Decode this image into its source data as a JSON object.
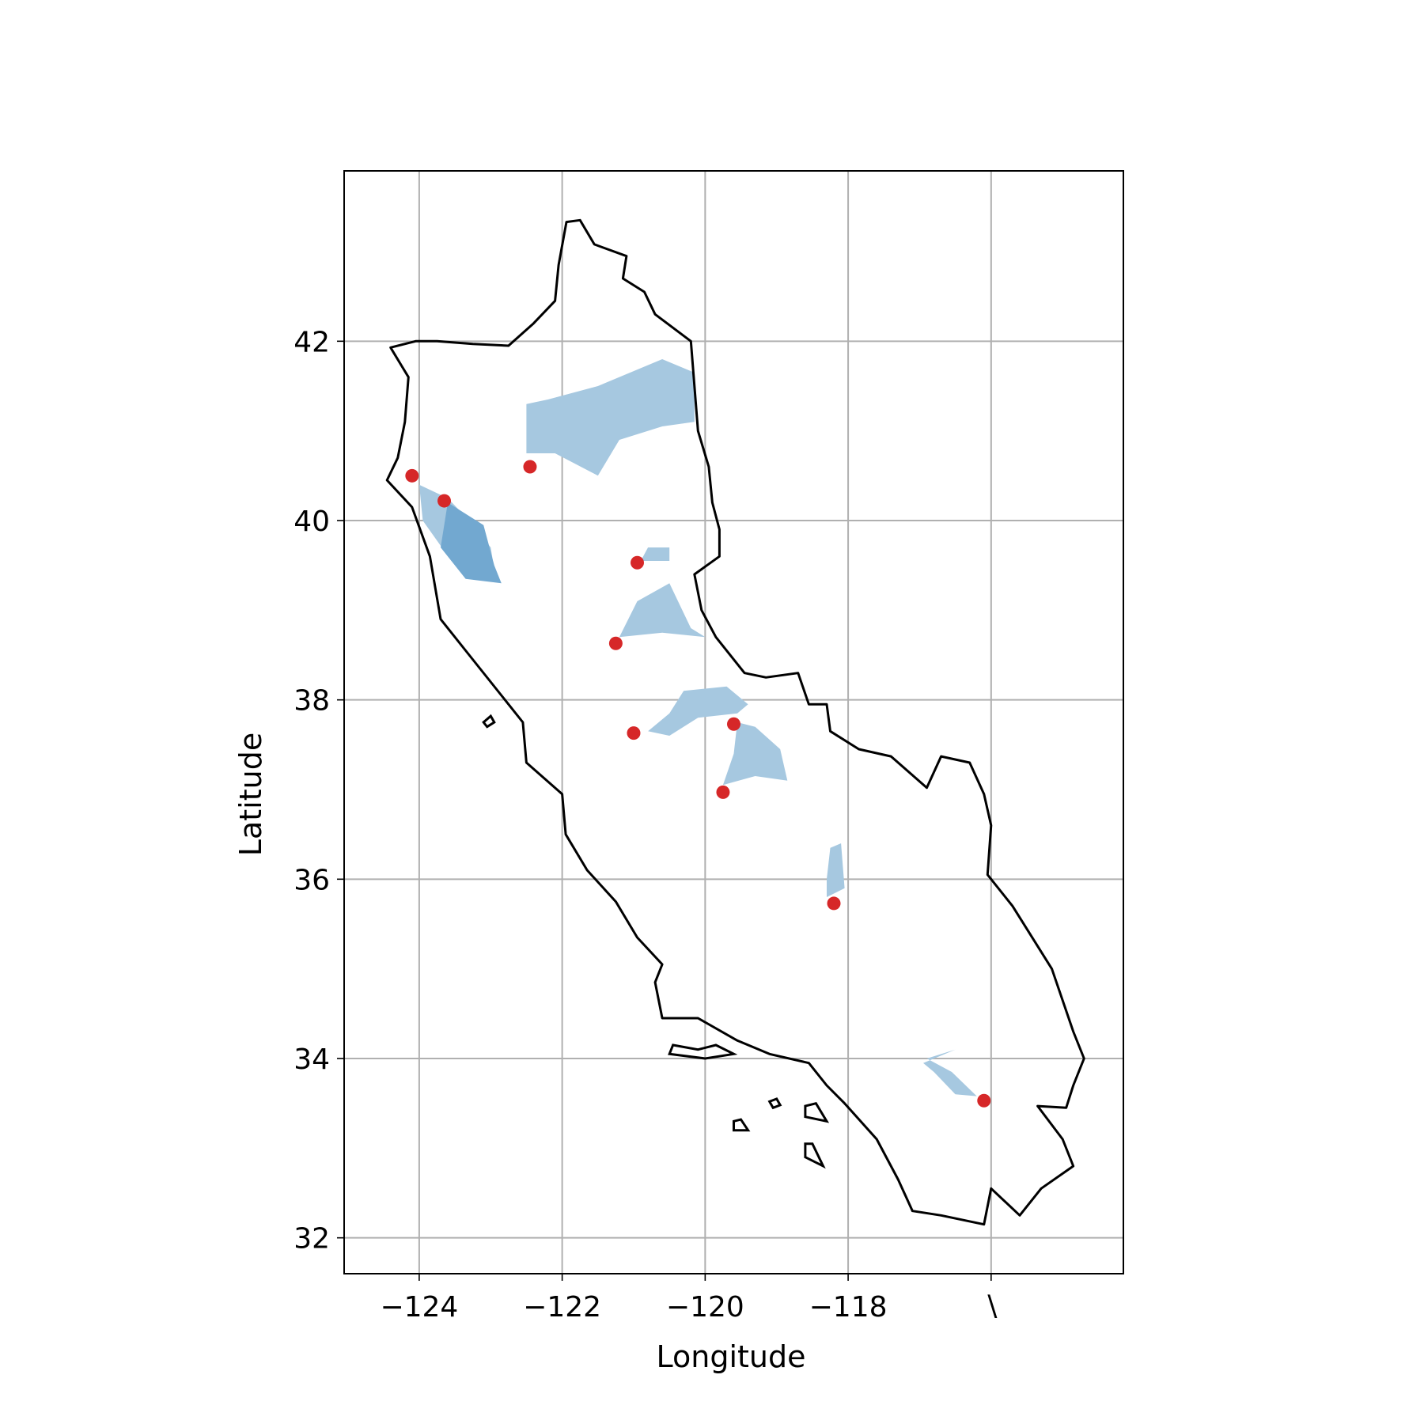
{
  "chart_data": {
    "type": "scatter",
    "title": "",
    "xlabel": "Longitude",
    "ylabel": "Latitude",
    "xlim": [
      -125.05,
      -114.15
    ],
    "ylim": [
      31.6,
      43.9
    ],
    "grid": true,
    "xticks": [
      -124,
      -122,
      -120,
      -118,
      -116
    ],
    "yticks": [
      32,
      34,
      36,
      38,
      40,
      42
    ],
    "xtick_labels": [
      "−124",
      "−122",
      "−120",
      "−118",
      "∖"
    ],
    "ytick_labels": [
      "32",
      "34",
      "36",
      "38",
      "40",
      "42"
    ],
    "colors": {
      "points": "#d62728",
      "watershed": "#a6c8e0",
      "watershed_overlap": "#72a8d0",
      "boundary": "#000000"
    },
    "series": [
      {
        "marker": "circle",
        "x": [
          -124.1,
          -123.65,
          -122.45,
          -120.95,
          -121.25,
          -121.0,
          -119.6,
          -119.75,
          -118.2,
          -116.1
        ],
        "y": [
          40.5,
          40.22,
          40.6,
          39.53,
          38.63,
          37.63,
          37.73,
          36.97,
          35.73,
          33.53
        ]
      }
    ],
    "shapes": [
      {
        "name": "boundary",
        "kind": "outline",
        "points": [
          [
            -121.94,
            43.33
          ],
          [
            -121.75,
            43.35
          ],
          [
            -121.55,
            43.08
          ],
          [
            -121.1,
            42.95
          ],
          [
            -121.15,
            42.7
          ],
          [
            -120.85,
            42.55
          ],
          [
            -120.7,
            42.3
          ],
          [
            -120.2,
            42.0
          ],
          [
            -120.15,
            41.5
          ],
          [
            -120.1,
            41.0
          ],
          [
            -119.95,
            40.6
          ],
          [
            -119.9,
            40.2
          ],
          [
            -119.8,
            39.9
          ],
          [
            -119.8,
            39.6
          ],
          [
            -120.15,
            39.4
          ],
          [
            -120.05,
            39.0
          ],
          [
            -119.85,
            38.7
          ],
          [
            -119.45,
            38.3
          ],
          [
            -119.15,
            38.25
          ],
          [
            -118.7,
            38.3
          ],
          [
            -118.55,
            37.95
          ],
          [
            -118.3,
            37.95
          ],
          [
            -118.25,
            37.65
          ],
          [
            -117.85,
            37.45
          ],
          [
            -117.4,
            37.37
          ],
          [
            -116.9,
            37.02
          ],
          [
            -116.7,
            37.37
          ],
          [
            -116.3,
            37.3
          ],
          [
            -116.1,
            36.95
          ],
          [
            -116.0,
            36.6
          ],
          [
            -116.05,
            36.05
          ],
          [
            -115.7,
            35.7
          ],
          [
            -115.15,
            35.0
          ],
          [
            -114.85,
            34.3
          ],
          [
            -114.7,
            34.0
          ],
          [
            -114.85,
            33.7
          ],
          [
            -114.95,
            33.45
          ],
          [
            -115.35,
            33.47
          ],
          [
            -115.0,
            33.1
          ],
          [
            -114.85,
            32.8
          ],
          [
            -115.3,
            32.55
          ],
          [
            -115.6,
            32.25
          ],
          [
            -116.0,
            32.55
          ],
          [
            -116.1,
            32.15
          ],
          [
            -116.7,
            32.25
          ],
          [
            -117.1,
            32.3
          ],
          [
            -117.3,
            32.65
          ],
          [
            -117.6,
            33.1
          ],
          [
            -118.05,
            33.5
          ],
          [
            -118.3,
            33.7
          ],
          [
            -118.55,
            33.95
          ],
          [
            -119.1,
            34.05
          ],
          [
            -119.55,
            34.2
          ],
          [
            -120.1,
            34.45
          ],
          [
            -120.6,
            34.45
          ],
          [
            -120.7,
            34.85
          ],
          [
            -120.6,
            35.05
          ],
          [
            -120.95,
            35.35
          ],
          [
            -121.25,
            35.75
          ],
          [
            -121.65,
            36.1
          ],
          [
            -121.95,
            36.5
          ],
          [
            -122.0,
            36.95
          ],
          [
            -122.5,
            37.3
          ],
          [
            -122.55,
            37.75
          ],
          [
            -122.85,
            38.05
          ],
          [
            -123.3,
            38.5
          ],
          [
            -123.7,
            38.9
          ],
          [
            -123.85,
            39.6
          ],
          [
            -124.1,
            40.15
          ],
          [
            -124.45,
            40.45
          ],
          [
            -124.3,
            40.7
          ],
          [
            -124.2,
            41.1
          ],
          [
            -124.15,
            41.6
          ],
          [
            -124.4,
            41.93
          ],
          [
            -124.05,
            42.0
          ],
          [
            -123.75,
            42.0
          ],
          [
            -123.25,
            41.97
          ],
          [
            -122.75,
            41.95
          ],
          [
            -122.4,
            42.2
          ],
          [
            -122.1,
            42.45
          ],
          [
            -122.05,
            42.85
          ]
        ]
      },
      {
        "name": "island-1",
        "kind": "outline",
        "points": [
          [
            -120.5,
            34.05
          ],
          [
            -120.0,
            34.0
          ],
          [
            -119.6,
            34.05
          ],
          [
            -119.85,
            34.15
          ],
          [
            -120.1,
            34.1
          ],
          [
            -120.45,
            34.15
          ]
        ]
      },
      {
        "name": "island-2",
        "kind": "outline",
        "points": [
          [
            -119.05,
            33.45
          ],
          [
            -118.95,
            33.48
          ],
          [
            -119.0,
            33.55
          ],
          [
            -119.1,
            33.52
          ]
        ]
      },
      {
        "name": "island-3",
        "kind": "outline",
        "points": [
          [
            -118.6,
            33.35
          ],
          [
            -118.3,
            33.3
          ],
          [
            -118.45,
            33.5
          ],
          [
            -118.6,
            33.47
          ]
        ]
      },
      {
        "name": "island-4",
        "kind": "outline",
        "points": [
          [
            -119.6,
            33.2
          ],
          [
            -119.4,
            33.2
          ],
          [
            -119.5,
            33.32
          ],
          [
            -119.6,
            33.3
          ]
        ]
      },
      {
        "name": "island-5",
        "kind": "outline",
        "points": [
          [
            -118.6,
            32.9
          ],
          [
            -118.35,
            32.8
          ],
          [
            -118.5,
            33.05
          ],
          [
            -118.6,
            33.05
          ]
        ]
      },
      {
        "name": "island-6",
        "kind": "outline",
        "points": [
          [
            -123.05,
            37.7
          ],
          [
            -122.95,
            37.75
          ],
          [
            -123.0,
            37.82
          ],
          [
            -123.1,
            37.75
          ]
        ]
      },
      {
        "name": "watershed-1",
        "kind": "fill",
        "points": [
          [
            -122.5,
            40.75
          ],
          [
            -122.5,
            41.3
          ],
          [
            -122.2,
            41.35
          ],
          [
            -121.5,
            41.5
          ],
          [
            -120.6,
            41.8
          ],
          [
            -120.15,
            41.65
          ],
          [
            -120.15,
            41.1
          ],
          [
            -120.6,
            41.05
          ],
          [
            -121.2,
            40.9
          ],
          [
            -121.5,
            40.5
          ],
          [
            -122.1,
            40.75
          ]
        ]
      },
      {
        "name": "watershed-2",
        "kind": "fill",
        "points": [
          [
            -124.0,
            40.4
          ],
          [
            -123.6,
            40.25
          ],
          [
            -123.3,
            40.0
          ],
          [
            -123.0,
            39.7
          ],
          [
            -122.95,
            39.45
          ],
          [
            -123.55,
            39.55
          ],
          [
            -123.95,
            40.0
          ]
        ]
      },
      {
        "name": "watershed-3",
        "kind": "fill",
        "points": [
          [
            -123.6,
            40.2
          ],
          [
            -123.1,
            39.95
          ],
          [
            -122.95,
            39.5
          ],
          [
            -122.85,
            39.3
          ],
          [
            -123.35,
            39.35
          ],
          [
            -123.7,
            39.7
          ]
        ]
      },
      {
        "name": "watershed-4",
        "kind": "fill",
        "points": [
          [
            -120.9,
            39.55
          ],
          [
            -120.5,
            39.55
          ],
          [
            -120.5,
            39.7
          ],
          [
            -120.8,
            39.7
          ]
        ]
      },
      {
        "name": "watershed-5",
        "kind": "fill",
        "points": [
          [
            -121.2,
            38.7
          ],
          [
            -120.95,
            39.1
          ],
          [
            -120.5,
            39.3
          ],
          [
            -120.2,
            38.8
          ],
          [
            -120.0,
            38.7
          ],
          [
            -120.6,
            38.75
          ]
        ]
      },
      {
        "name": "watershed-6",
        "kind": "fill",
        "points": [
          [
            -120.8,
            37.65
          ],
          [
            -120.5,
            37.6
          ],
          [
            -120.1,
            37.8
          ],
          [
            -119.55,
            37.85
          ],
          [
            -119.4,
            37.95
          ],
          [
            -119.7,
            38.15
          ],
          [
            -120.3,
            38.1
          ],
          [
            -120.5,
            37.85
          ]
        ]
      },
      {
        "name": "watershed-7",
        "kind": "fill",
        "points": [
          [
            -119.75,
            37.05
          ],
          [
            -119.3,
            37.15
          ],
          [
            -118.85,
            37.1
          ],
          [
            -118.95,
            37.45
          ],
          [
            -119.3,
            37.7
          ],
          [
            -119.55,
            37.75
          ],
          [
            -119.6,
            37.4
          ]
        ]
      },
      {
        "name": "watershed-8",
        "kind": "fill",
        "points": [
          [
            -118.3,
            35.8
          ],
          [
            -118.05,
            35.9
          ],
          [
            -118.1,
            36.4
          ],
          [
            -118.25,
            36.35
          ],
          [
            -118.3,
            36.0
          ]
        ]
      },
      {
        "name": "watershed-9",
        "kind": "fill",
        "points": [
          [
            -116.9,
            34.0
          ],
          [
            -116.55,
            33.85
          ],
          [
            -116.2,
            33.58
          ],
          [
            -116.5,
            33.6
          ],
          [
            -116.8,
            33.85
          ],
          [
            -116.95,
            33.95
          ],
          [
            -116.5,
            34.1
          ]
        ]
      }
    ]
  }
}
